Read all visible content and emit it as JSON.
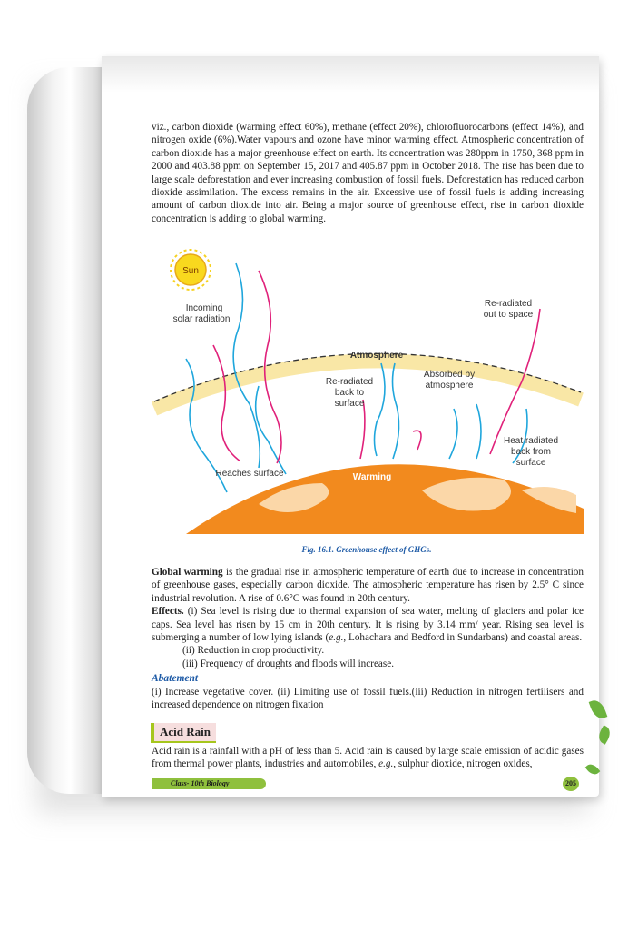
{
  "paragraph_1": "viz., carbon dioxide (warming effect 60%), methane (effect 20%), chlorofluorocarbons (effect 14%), and nitrogen oxide (6%).Water vapours and ozone have minor warming effect. Atmospheric concentration of carbon dioxide has a major greenhouse effect on earth. Its concentration was 280ppm in 1750, 368 ppm in 2000 and 403.88 ppm on September 15, 2017 and 405.87 ppm in October 2018. The rise has been due to large scale deforestation and ever increasing combustion of fossil fuels. Deforestation has reduced carbon dioxide assimilation. The excess remains in the air. Excessive use of fossil fuels is adding increasing amount of carbon dioxide into air. Being a major source of greenhouse effect, rise in carbon dioxide concentration is adding to global warming.",
  "diagram": {
    "sun": "Sun",
    "incoming_1": "Incoming",
    "incoming_2": "solar radiation",
    "atmosphere": "Atmosphere",
    "reradiated_space_1": "Re-radiated",
    "reradiated_space_2": "out to space",
    "reradiated_back_1": "Re-radiated",
    "reradiated_back_2": "back to",
    "reradiated_back_3": "surface",
    "absorbed_1": "Absorbed by",
    "absorbed_2": "atmosphere",
    "heat_1": "Heat radiated",
    "heat_2": "back from",
    "heat_3": "surface",
    "reaches": "Reaches surface",
    "warming": "Warming",
    "colors": {
      "incoming": "#1fa6dc",
      "reradiated": "#e0217a",
      "earth": "#f28a1e",
      "atmosphere": "#f9e7a6"
    }
  },
  "caption": "Fig. 16.1. Greenhouse effect of GHGs.",
  "global_warming_term": "Global warming",
  "global_warming_text": " is the gradual rise in atmospheric temperature of earth due to increase in concentration of greenhouse gases, especially carbon dioxide. The atmospheric temperature has risen by 2.5° C since industrial revolution. A rise of 0.6°C was found in 20th century.",
  "effects_term": "Effects.",
  "effects_text_1": " (i) Sea level is rising due to thermal expansion of sea water, melting of glaciers and polar ice caps. Sea level has risen by 15 cm in 20th century. It is rising by 3.14 mm/ year. Rising sea level is submerging a number of low lying islands (",
  "effects_eg": "e.g.",
  "effects_text_2": ", Lohachara and Bedford in Sundarbans) and coastal areas.",
  "effects_ii": "(ii) Reduction in crop productivity.",
  "effects_iii": "(iii) Frequency of droughts and floods will increase.",
  "abatement_heading": "Abatement",
  "abatement_text": "(i) Increase vegetative cover. (ii) Limiting use of fossil fuels.(iii) Reduction in nitrogen fertilisers and increased dependence on nitrogen fixation",
  "acid_rain_heading": "Acid Rain",
  "acid_rain_text_1": "Acid rain is a rainfall with a pH of less than 5. Acid rain is caused by large scale emission of acidic gases from thermal power plants, industries and automobiles, ",
  "acid_rain_eg": "e.g.",
  "acid_rain_text_2": ", sulphur dioxide, nitrogen oxides,",
  "footer_label": "Class- 10th Biology",
  "page_number": "205"
}
